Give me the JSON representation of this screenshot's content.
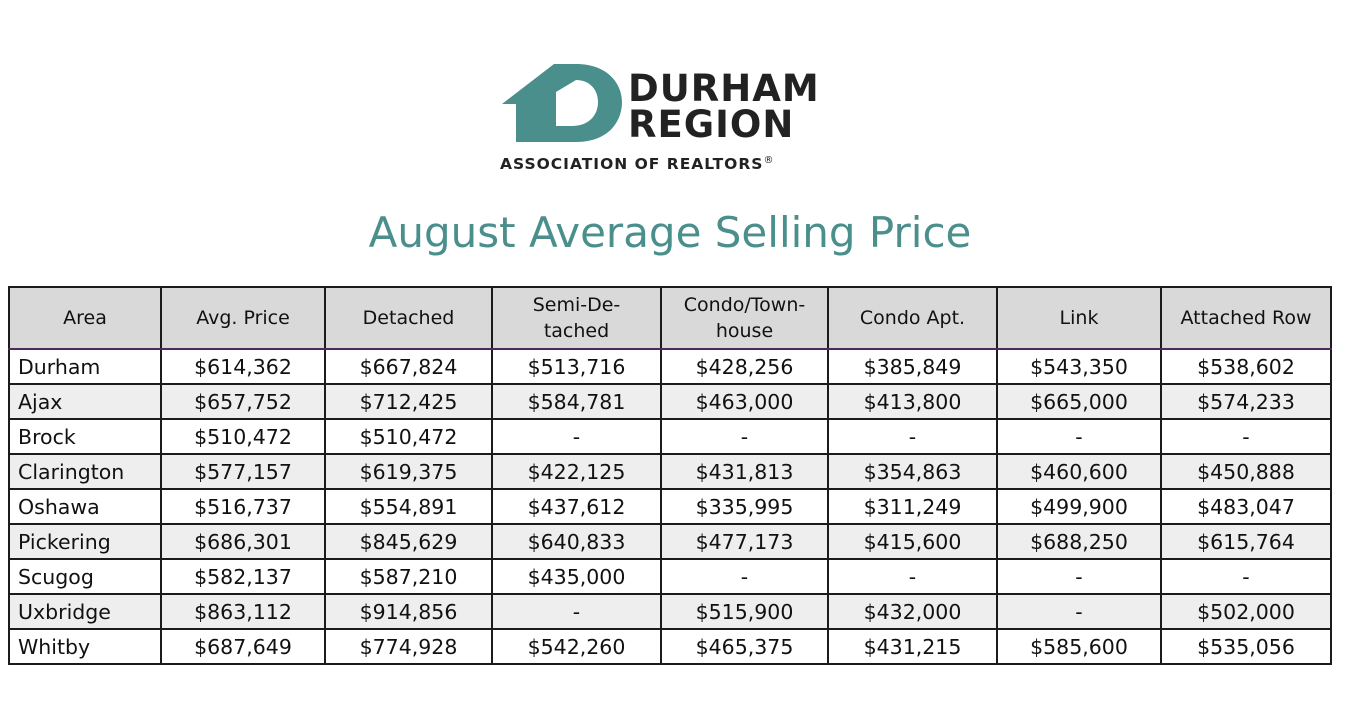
{
  "logo": {
    "line1": "DURHAM",
    "line2": "REGION",
    "association": "ASSOCIATION OF REALTORS",
    "registered_mark": "®",
    "brand_color": "#4a8f8c"
  },
  "title": "August Average Selling Price",
  "table": {
    "headers": [
      "Area",
      "Avg. Price",
      "Detached",
      "Semi-De-\ntached",
      "Condo/Town-\nhouse",
      "Condo Apt.",
      "Link",
      "Attached Row"
    ],
    "rows": [
      [
        "Durham",
        "$614,362",
        "$667,824",
        "$513,716",
        "$428,256",
        "$385,849",
        "$543,350",
        "$538,602"
      ],
      [
        "Ajax",
        "$657,752",
        "$712,425",
        "$584,781",
        "$463,000",
        "$413,800",
        "$665,000",
        "$574,233"
      ],
      [
        "Brock",
        "$510,472",
        "$510,472",
        "-",
        "-",
        "-",
        "-",
        "-"
      ],
      [
        "Clarington",
        "$577,157",
        "$619,375",
        "$422,125",
        "$431,813",
        "$354,863",
        "$460,600",
        "$450,888"
      ],
      [
        "Oshawa",
        "$516,737",
        "$554,891",
        "$437,612",
        "$335,995",
        "$311,249",
        "$499,900",
        "$483,047"
      ],
      [
        "Pickering",
        "$686,301",
        "$845,629",
        "$640,833",
        "$477,173",
        "$415,600",
        "$688,250",
        "$615,764"
      ],
      [
        "Scugog",
        "$582,137",
        "$587,210",
        "$435,000",
        "-",
        "-",
        "-",
        "-"
      ],
      [
        "Uxbridge",
        "$863,112",
        "$914,856",
        "-",
        "$515,900",
        "$432,000",
        "-",
        "$502,000"
      ],
      [
        "Whitby",
        "$687,649",
        "$774,928",
        "$542,260",
        "$465,375",
        "$431,215",
        "$585,600",
        "$535,056"
      ]
    ]
  }
}
